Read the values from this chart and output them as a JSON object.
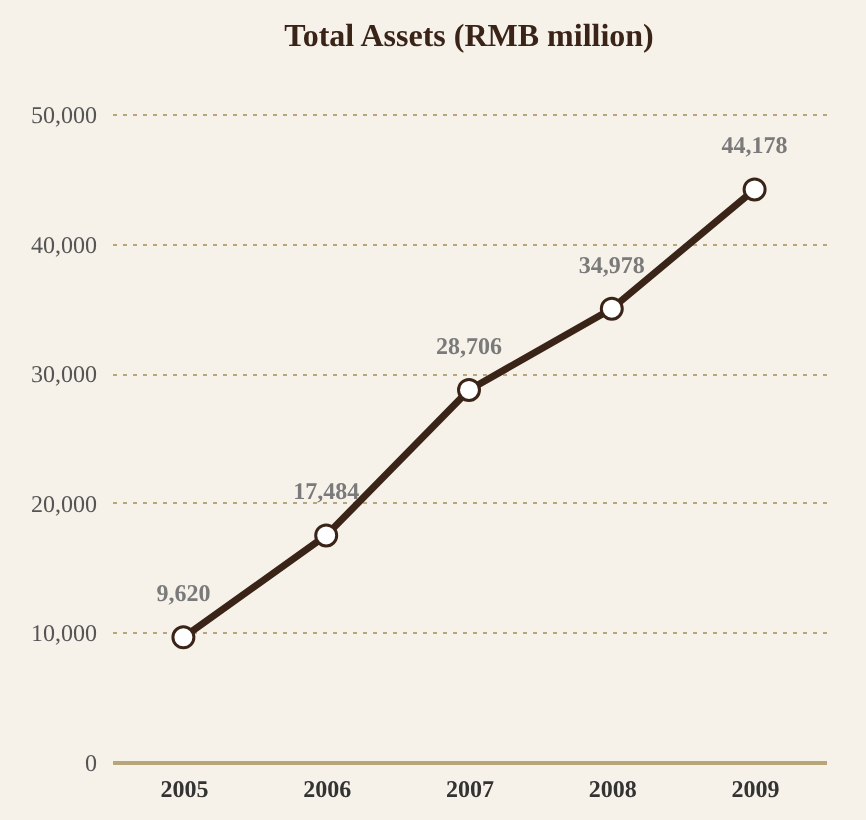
{
  "chart_data": {
    "type": "line",
    "title": "Total Assets (RMB million)",
    "categories": [
      "2005",
      "2006",
      "2007",
      "2008",
      "2009"
    ],
    "series": [
      {
        "color": "#3a2418",
        "values": [
          9620,
          17484,
          28706,
          34978,
          44178
        ],
        "value_labels": [
          "9,620",
          "17,484",
          "28,706",
          "34,978",
          "44,178"
        ]
      }
    ],
    "ylim": [
      0,
      50000
    ],
    "yticks": [
      0,
      {
        "value": 10000,
        "label": "10,000"
      },
      {
        "value": 20000,
        "label": "20,000"
      },
      {
        "value": 30000,
        "label": "30,000"
      },
      {
        "value": 40000,
        "label": "40,000"
      },
      {
        "value": 50000,
        "label": "50,000"
      }
    ],
    "grid": "y",
    "marker": "circle",
    "line_style": "solid",
    "legend": false
  }
}
